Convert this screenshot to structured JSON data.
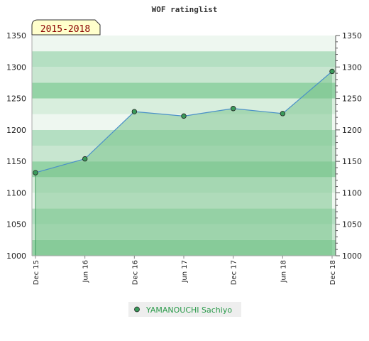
{
  "chart_data": {
    "type": "area",
    "title": "WOF ratinglist",
    "period_badge": "2015-2018",
    "categories": [
      "Dec 15",
      "Jun 16",
      "Dec 16",
      "Jun 17",
      "Dec 17",
      "Jun 18",
      "Dec 18"
    ],
    "series": [
      {
        "name": "YAMANOUCHI Sachiyo",
        "values": [
          1132,
          1154,
          1229,
          1222,
          1234,
          1226,
          1293
        ]
      }
    ],
    "ylim": [
      1000,
      1350
    ],
    "yticks": [
      1000,
      1050,
      1100,
      1150,
      1200,
      1250,
      1300,
      1350
    ],
    "right_axis": true,
    "grid": true,
    "legend": "bottom-center",
    "colors": {
      "area_fill": "#7cc48e",
      "line": "#4a90c8",
      "marker": "#3a9a5a",
      "legend_text": "#2a9a4a",
      "badge_bg": "#ffffcc",
      "badge_text": "#8b0000"
    }
  }
}
